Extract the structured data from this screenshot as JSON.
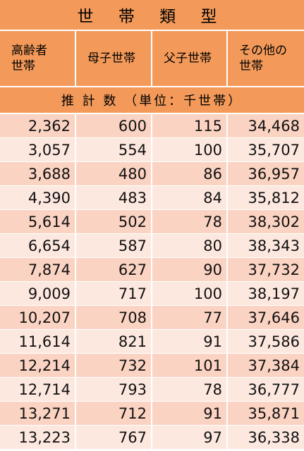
{
  "title": "世 帯 類 型",
  "columns": [
    "高齢者\n世帯",
    "母子世帯",
    "父子世帯",
    "その他の\n世帯"
  ],
  "unit_row": "推 計 数 （単位：千世帯）",
  "rows": [
    [
      "2,362",
      "600",
      "115",
      "34,468"
    ],
    [
      "3,057",
      "554",
      "100",
      "35,707"
    ],
    [
      "3,688",
      "480",
      "86",
      "36,957"
    ],
    [
      "4,390",
      "483",
      "84",
      "35,812"
    ],
    [
      "5,614",
      "502",
      "78",
      "38,302"
    ],
    [
      "6,654",
      "587",
      "80",
      "38,343"
    ],
    [
      "7,874",
      "627",
      "90",
      "37,732"
    ],
    [
      "9,009",
      "717",
      "100",
      "38,197"
    ],
    [
      "10,207",
      "708",
      "77",
      "37,646"
    ],
    [
      "11,614",
      "821",
      "91",
      "37,586"
    ],
    [
      "12,214",
      "732",
      "101",
      "37,384"
    ],
    [
      "12,714",
      "793",
      "78",
      "36,777"
    ],
    [
      "13,271",
      "712",
      "91",
      "35,871"
    ],
    [
      "13,223",
      "767",
      "97",
      "36,338"
    ]
  ],
  "colors": {
    "header": "#f39a5a",
    "row_dark": "#fbd3c2",
    "row_light": "#fde8df"
  }
}
